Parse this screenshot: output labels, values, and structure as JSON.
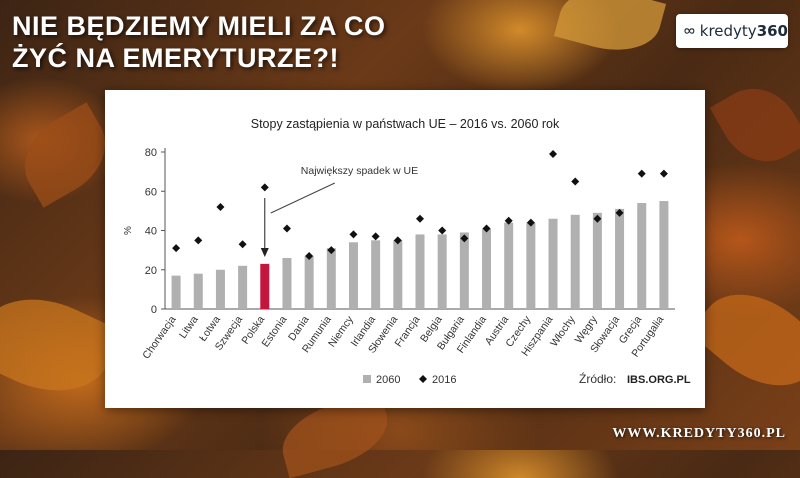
{
  "headline": {
    "line1": "NIE BĘDZIEMY MIELI ZA CO",
    "line2": "ŻYĆ NA EMERYTURZE?!"
  },
  "logo": {
    "brand": "kredyty",
    "brand_number": "360"
  },
  "footer": {
    "url": "WWW.KREDYTY360.PL"
  },
  "chart_data": {
    "type": "bar",
    "title": "Stopy zastąpienia w państwach UE – 2016 vs. 2060 rok",
    "ylabel": "%",
    "ylim": [
      0,
      80
    ],
    "yticks": [
      0,
      20,
      40,
      60,
      80
    ],
    "grid": false,
    "legend_position": "bottom",
    "categories": [
      "Chorwacja",
      "Litwa",
      "Łotwa",
      "Szwecja",
      "Polska",
      "Estonia",
      "Dania",
      "Rumunia",
      "Niemcy",
      "Irlandia",
      "Słowenia",
      "Francja",
      "Belgia",
      "Bułgaria",
      "Finlandia",
      "Austria",
      "Czechy",
      "Hiszpania",
      "Włochy",
      "Węgry",
      "Słowacja",
      "Grecja",
      "Portugalia"
    ],
    "series": [
      {
        "name": "2060",
        "kind": "bar",
        "color": "#b0b0b0",
        "values": [
          17,
          18,
          20,
          22,
          23,
          26,
          27,
          31,
          34,
          35,
          35,
          38,
          38,
          39,
          41,
          44,
          44,
          46,
          48,
          49,
          51,
          54,
          55
        ]
      },
      {
        "name": "2016",
        "kind": "marker",
        "color": "#111111",
        "values": [
          31,
          35,
          52,
          33,
          62,
          41,
          27,
          30,
          38,
          37,
          35,
          46,
          40,
          36,
          41,
          45,
          44,
          79,
          65,
          46,
          49,
          69,
          69
        ]
      }
    ],
    "highlight": {
      "category": "Polska",
      "color": "#c4163c"
    },
    "annotation": {
      "text": "Największy spadek w UE",
      "category": "Polska"
    },
    "source_label": "Źródło:",
    "source_value": "IBS.ORG.PL"
  }
}
